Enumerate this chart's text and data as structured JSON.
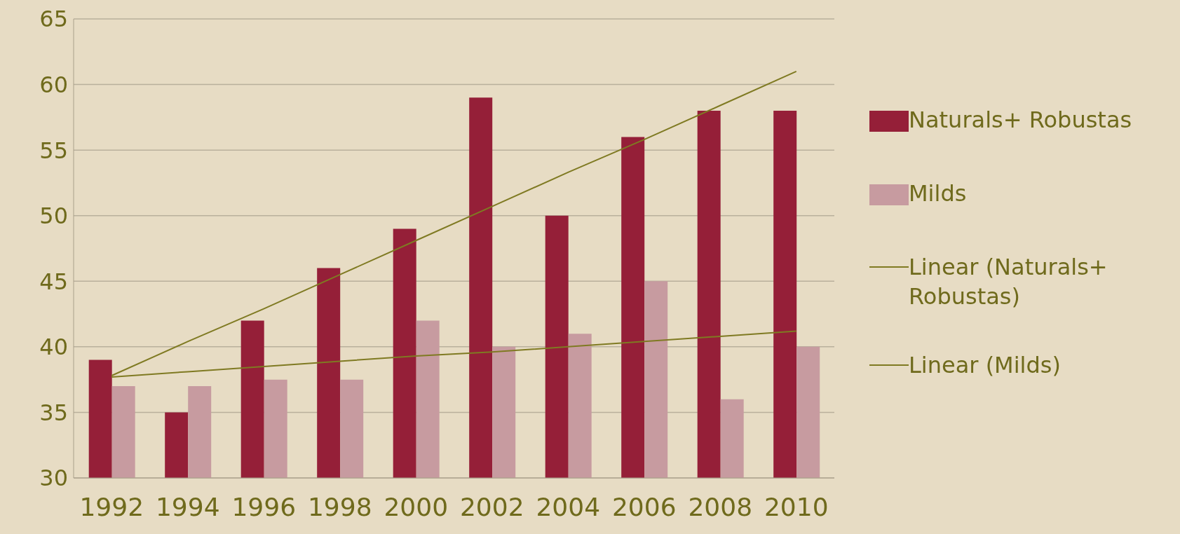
{
  "chart_data": {
    "type": "bar",
    "categories": [
      "1992",
      "1994",
      "1996",
      "1998",
      "2000",
      "2002",
      "2004",
      "2006",
      "2008",
      "2010"
    ],
    "series": [
      {
        "name": "Naturals+ Robustas",
        "color": "#951f38",
        "values": [
          39,
          35,
          42,
          46,
          49,
          59,
          50,
          56,
          58,
          58
        ]
      },
      {
        "name": "Milds",
        "color": "#c79ba0",
        "values": [
          37,
          37,
          37.5,
          37.5,
          42,
          40,
          41,
          45,
          36,
          40
        ]
      },
      {
        "name": "Linear (Naturals+ Robustas)",
        "type": "line",
        "color": "#7f7a22",
        "values": [
          37.8,
          40.4,
          42.9,
          45.5,
          48.1,
          50.7,
          53.3,
          55.8,
          58.4,
          61.0
        ]
      },
      {
        "name": "Linear (Milds)",
        "type": "line",
        "color": "#7f7a22",
        "values": [
          37.7,
          38.1,
          38.5,
          38.9,
          39.3,
          39.6,
          40.0,
          40.4,
          40.8,
          41.2
        ]
      }
    ],
    "ylim": [
      30,
      65
    ],
    "yticks": [
      30,
      35,
      40,
      45,
      50,
      55,
      60,
      65
    ],
    "grid": "y",
    "legend": "right",
    "marker": "none",
    "line_style": "solid"
  }
}
